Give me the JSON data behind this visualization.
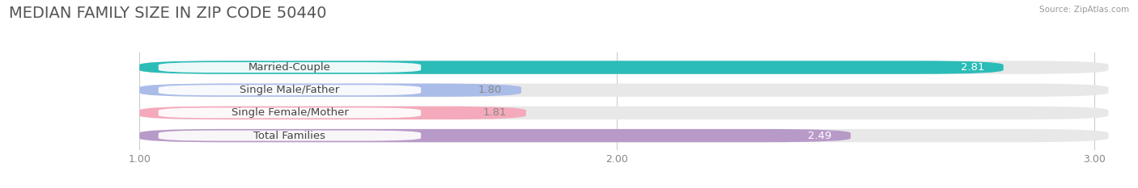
{
  "title": "MEDIAN FAMILY SIZE IN ZIP CODE 50440",
  "source": "Source: ZipAtlas.com",
  "categories": [
    "Married-Couple",
    "Single Male/Father",
    "Single Female/Mother",
    "Total Families"
  ],
  "values": [
    2.81,
    1.8,
    1.81,
    2.49
  ],
  "bar_colors": [
    "#2BBCB8",
    "#AABCE8",
    "#F4AABB",
    "#B89AC8"
  ],
  "value_label_colors": [
    "#ffffff",
    "#888888",
    "#888888",
    "#ffffff"
  ],
  "xlim_min": 0.72,
  "xlim_max": 3.08,
  "xstart": 1.0,
  "xticks": [
    1.0,
    2.0,
    3.0
  ],
  "xtick_labels": [
    "1.00",
    "2.00",
    "3.00"
  ],
  "bar_height": 0.58,
  "background_color": "#ffffff",
  "bar_bg_color": "#e8e8e8",
  "title_fontsize": 14,
  "label_fontsize": 9.5,
  "value_fontsize": 9.5,
  "tick_fontsize": 9,
  "grid_color": "#cccccc"
}
